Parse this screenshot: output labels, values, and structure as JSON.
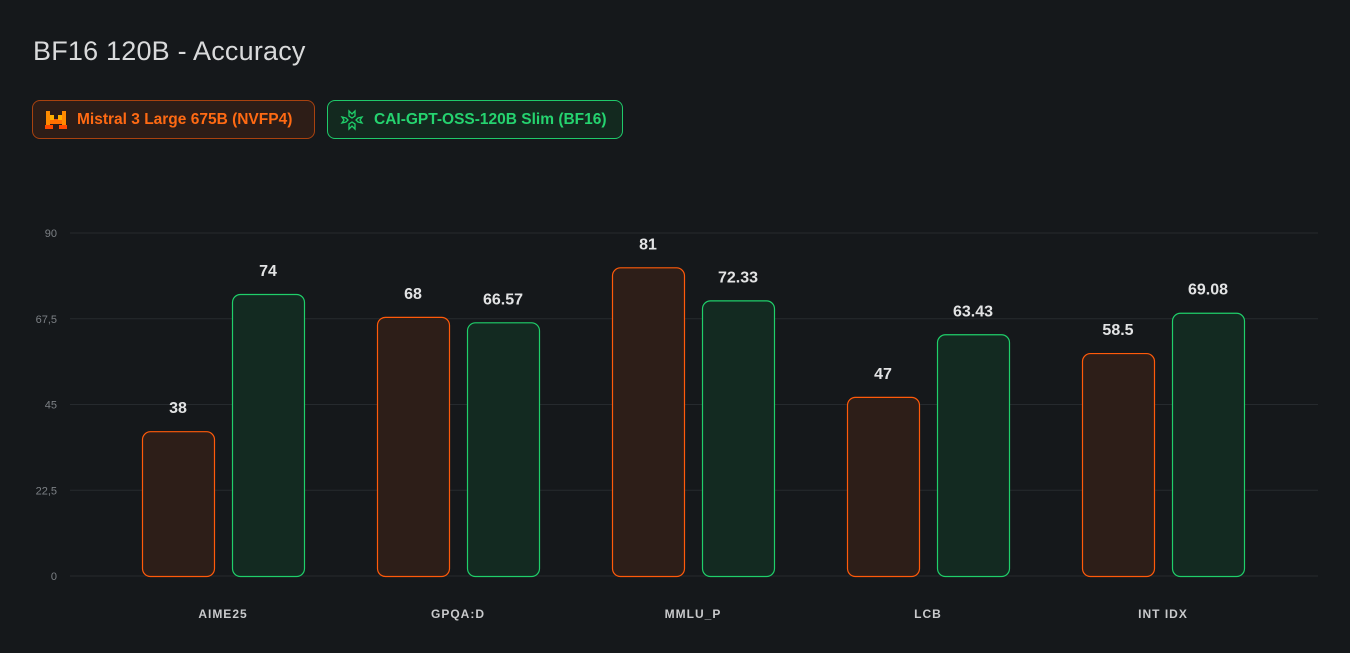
{
  "chart_data": {
    "type": "bar",
    "title": "BF16 120B - Accuracy",
    "xlabel": "",
    "ylabel": "",
    "ylim": [
      0,
      90
    ],
    "yticks": [
      "0",
      "22,5",
      "45",
      "67,5",
      "90"
    ],
    "ytick_values": [
      0,
      22.5,
      45,
      67.5,
      90
    ],
    "grid": true,
    "legend_placement": "top-left",
    "categories": [
      "AIME25",
      "GPQA:D",
      "MMLU_P",
      "LCB",
      "INT IDX"
    ],
    "series": [
      {
        "name": "Mistral 3 Large 675B (NVFP4)",
        "color": "#ff5a0a",
        "fill": "#2d1e18",
        "values": [
          38,
          68,
          81,
          47,
          58.5
        ],
        "labels": [
          "38",
          "68",
          "81",
          "47",
          "58.5"
        ]
      },
      {
        "name": "CAI-GPT-OSS-120B Slim (BF16)",
        "color": "#1fcf6a",
        "fill": "#132a21",
        "values": [
          74,
          66.57,
          72.33,
          63.43,
          69.08
        ],
        "labels": [
          "74",
          "66.57",
          "72.33",
          "63.43",
          "69.08"
        ]
      }
    ]
  }
}
